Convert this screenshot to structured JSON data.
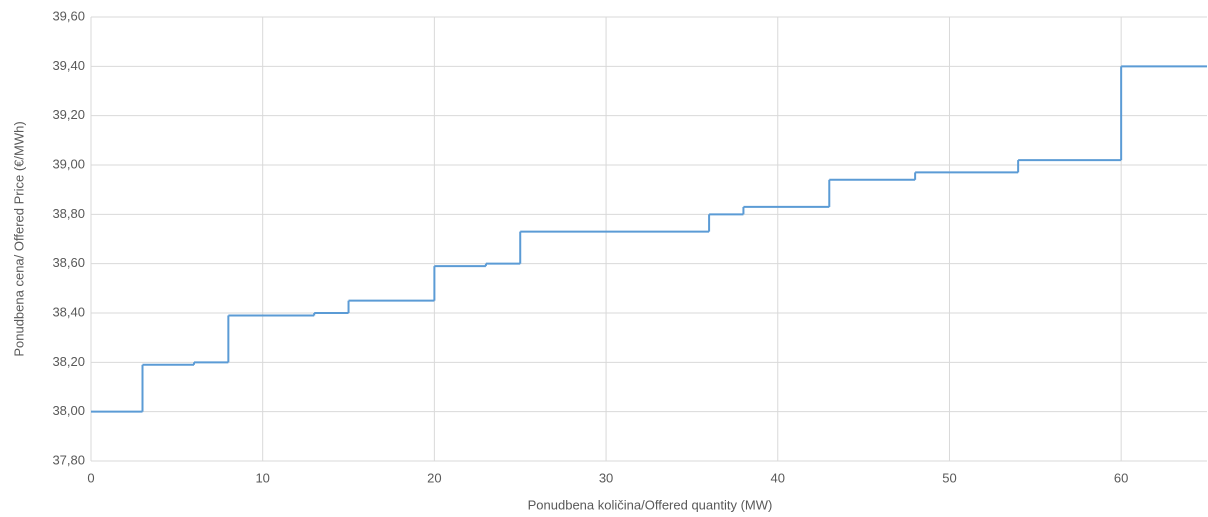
{
  "chart_data": {
    "type": "line",
    "step": "post",
    "x_label": "Ponudbena količina/Offered quantity (MW)",
    "y_label": "Ponudbena cena/ Offered Price (€/MWh)",
    "x": [
      0,
      3,
      6,
      8,
      13,
      15,
      20,
      23,
      25,
      36,
      38,
      43,
      48,
      54,
      60
    ],
    "series": [
      {
        "name": "Offered Price",
        "color": "#5b9bd5",
        "values": [
          38.0,
          38.19,
          38.2,
          38.39,
          38.4,
          38.45,
          38.59,
          38.6,
          38.73,
          38.8,
          38.83,
          38.94,
          38.97,
          39.02,
          39.4
        ]
      }
    ],
    "xlim": [
      0,
      65
    ],
    "xticks": [
      0,
      10,
      20,
      30,
      40,
      50,
      60
    ],
    "ylim": [
      37.8,
      39.6
    ],
    "yticks": [
      {
        "value": 37.8,
        "label": "37,80"
      },
      {
        "value": 38.0,
        "label": "38,00"
      },
      {
        "value": 38.2,
        "label": "38,20"
      },
      {
        "value": 38.4,
        "label": "38,40"
      },
      {
        "value": 38.6,
        "label": "38,60"
      },
      {
        "value": 38.8,
        "label": "38,80"
      },
      {
        "value": 39.0,
        "label": "39,00"
      },
      {
        "value": 39.2,
        "label": "39,20"
      },
      {
        "value": 39.4,
        "label": "39,40"
      },
      {
        "value": 39.6,
        "label": "39,60"
      }
    ],
    "grid": true
  }
}
